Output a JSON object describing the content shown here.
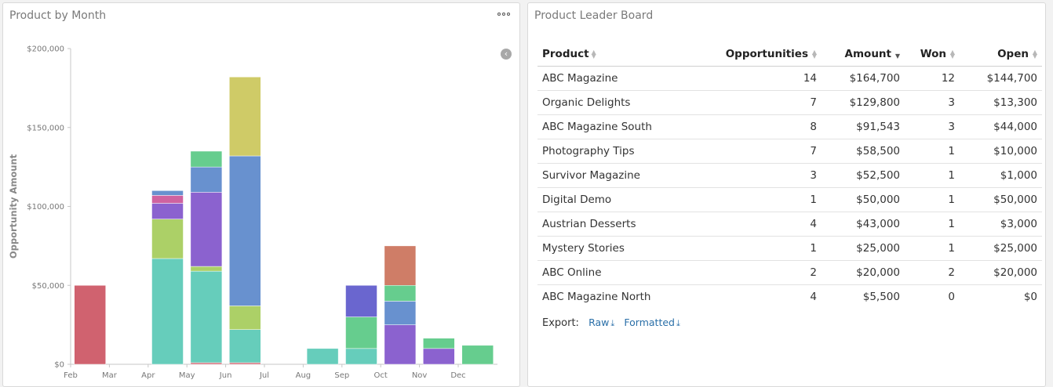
{
  "chart_panel": {
    "title": "Product by Month"
  },
  "board_panel": {
    "title": "Product Leader Board",
    "columns": {
      "product": "Product",
      "opportunities": "Opportunities",
      "amount": "Amount",
      "won": "Won",
      "open": "Open"
    },
    "rows": [
      {
        "product": "ABC Magazine",
        "opportunities": "14",
        "amount": "$164,700",
        "won": "12",
        "open": "$144,700"
      },
      {
        "product": "Organic Delights",
        "opportunities": "7",
        "amount": "$129,800",
        "won": "3",
        "open": "$13,300"
      },
      {
        "product": "ABC Magazine South",
        "opportunities": "8",
        "amount": "$91,543",
        "won": "3",
        "open": "$44,000"
      },
      {
        "product": "Photography Tips",
        "opportunities": "7",
        "amount": "$58,500",
        "won": "1",
        "open": "$10,000"
      },
      {
        "product": "Survivor Magazine",
        "opportunities": "3",
        "amount": "$52,500",
        "won": "1",
        "open": "$1,000"
      },
      {
        "product": "Digital Demo",
        "opportunities": "1",
        "amount": "$50,000",
        "won": "1",
        "open": "$50,000"
      },
      {
        "product": "Austrian Desserts",
        "opportunities": "4",
        "amount": "$43,000",
        "won": "1",
        "open": "$3,000"
      },
      {
        "product": "Mystery Stories",
        "opportunities": "1",
        "amount": "$25,000",
        "won": "1",
        "open": "$25,000"
      },
      {
        "product": "ABC Online",
        "opportunities": "2",
        "amount": "$20,000",
        "won": "2",
        "open": "$20,000"
      },
      {
        "product": "ABC Magazine North",
        "opportunities": "4",
        "amount": "$5,500",
        "won": "0",
        "open": "$0"
      }
    ],
    "export": {
      "label": "Export:",
      "raw": "Raw",
      "formatted": "Formatted"
    }
  },
  "chart_data": {
    "type": "bar",
    "stacked": true,
    "ylabel": "Opportunity Amount",
    "xlabel": "",
    "ylim": [
      0,
      200000
    ],
    "yticks": [
      {
        "value": 0,
        "label": "$0"
      },
      {
        "value": 50000,
        "label": "$50,000"
      },
      {
        "value": 100000,
        "label": "$100,000"
      },
      {
        "value": 150000,
        "label": "$150,000"
      },
      {
        "value": 200000,
        "label": "$200,000"
      }
    ],
    "xticks": [
      "Feb",
      "Mar",
      "Apr",
      "May",
      "Jun",
      "Jul",
      "Aug",
      "Sep",
      "Oct",
      "Nov",
      "Dec"
    ],
    "grid": false,
    "bars": [
      {
        "x": "Feb",
        "segments": [
          {
            "value": 50000,
            "color": "#d0626f"
          }
        ]
      },
      {
        "x": "Apr",
        "segments": [
          {
            "value": 67000,
            "color": "#66cdbb"
          },
          {
            "value": 25000,
            "color": "#acd067"
          },
          {
            "value": 10000,
            "color": "#8b62cf"
          },
          {
            "value": 5000,
            "color": "#cf62a0"
          },
          {
            "value": 3000,
            "color": "#6891cf"
          }
        ]
      },
      {
        "x": "May",
        "segments": [
          {
            "value": 1000,
            "color": "#d0626f"
          },
          {
            "value": 58000,
            "color": "#66cdbb"
          },
          {
            "value": 3000,
            "color": "#acd067"
          },
          {
            "value": 47000,
            "color": "#8b62cf"
          },
          {
            "value": 16000,
            "color": "#6891cf"
          },
          {
            "value": 10000,
            "color": "#66cd8e"
          }
        ]
      },
      {
        "x": "Jun",
        "segments": [
          {
            "value": 1000,
            "color": "#d0626f"
          },
          {
            "value": 21000,
            "color": "#66cdbb"
          },
          {
            "value": 15000,
            "color": "#acd067"
          },
          {
            "value": 95000,
            "color": "#6891cf"
          },
          {
            "value": 50000,
            "color": "#cfcb67"
          }
        ]
      },
      {
        "x": "Aug",
        "segments": [
          {
            "value": 10000,
            "color": "#66cdbb"
          }
        ]
      },
      {
        "x": "Sep",
        "segments": [
          {
            "value": 10000,
            "color": "#66cdbb"
          },
          {
            "value": 20000,
            "color": "#66cd8e"
          },
          {
            "value": 20000,
            "color": "#6a66cf"
          }
        ]
      },
      {
        "x": "Oct",
        "segments": [
          {
            "value": 25000,
            "color": "#8b62cf"
          },
          {
            "value": 15000,
            "color": "#6891cf"
          },
          {
            "value": 10000,
            "color": "#66cd8e"
          },
          {
            "value": 25000,
            "color": "#cf7d67"
          }
        ]
      },
      {
        "x": "Nov",
        "segments": [
          {
            "value": 10000,
            "color": "#8b62cf"
          },
          {
            "value": 6500,
            "color": "#66cd8e"
          }
        ]
      },
      {
        "x": "Dec",
        "segments": [
          {
            "value": 12000,
            "color": "#66cd8e"
          }
        ]
      }
    ]
  }
}
